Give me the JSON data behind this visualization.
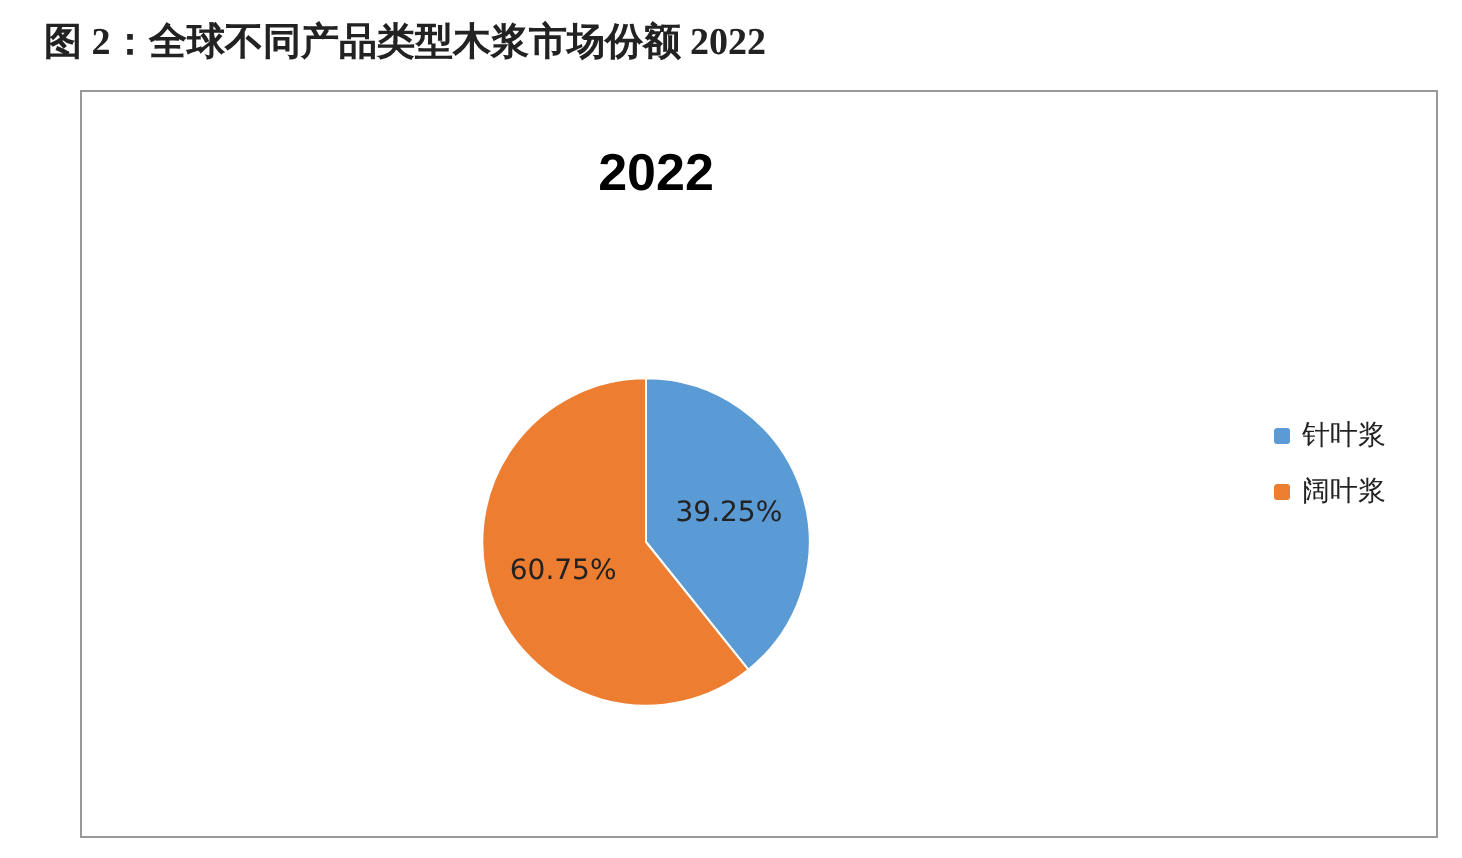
{
  "chart_data": {
    "type": "pie",
    "title": "图 2：全球不同产品类型木浆市场份额 2022",
    "subtitle": "2022",
    "categories": [
      "针叶浆",
      "阔叶浆"
    ],
    "values": [
      39.25,
      60.75
    ],
    "colors": [
      "#5b9bd5",
      "#ed7d31"
    ],
    "value_labels": [
      "39.25%",
      "60.75%"
    ],
    "legend": "right"
  }
}
